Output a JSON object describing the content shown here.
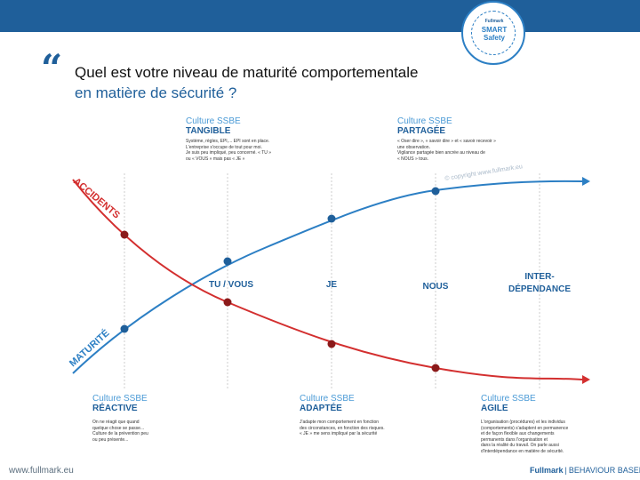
{
  "badge": {
    "top": "Fullmark",
    "line1": "SMART",
    "line2": "Safety"
  },
  "question": {
    "line1": "Quel est votre niveau  de maturité comportementale",
    "line2": "en matière de sécurité ?"
  },
  "curves": {
    "accidents_label": "ACCIDENTS",
    "maturity_label": "MATURITÉ",
    "accident_color": "#d32f2f",
    "maturity_color": "#2c7fc4",
    "accident_point_color": "#8b1a1a",
    "maturity_point_color": "#1f5f9a"
  },
  "stages": [
    {
      "title": "Culture SSBE",
      "subtitle": "TANGIBLE",
      "items": [
        "Système, règles, EPI,... EPI sont en place.",
        "L'entreprise s'occupe de tout pour moi.",
        "Je suis peu impliqué, peu concerné. « TU »",
        "ou « VOUS » mais pas « JE »"
      ]
    },
    {
      "title": "Culture SSBE",
      "subtitle": "PARTAGÉE",
      "items": [
        "« Oser dire », « savoir dire » et « savoir recevoir »",
        "une observation.",
        "Vigilance partagée bien ancrée au niveau de",
        "« NOUS » tous."
      ]
    },
    {
      "title": "Culture SSBE",
      "subtitle": "RÉACTIVE",
      "items": [
        "On ne réagit que quand",
        "quelque chose se passe...",
        "Culture de la prévention peu",
        "ou peu présente..."
      ]
    },
    {
      "title": "Culture SSBE",
      "subtitle": "ADAPTÉE",
      "items": [
        "J'adapte mon comportement en fonction",
        "des circonstances, en fonction des risques.",
        "« JE » me sens impliqué par la sécurité"
      ]
    },
    {
      "title": "Culture SSBE",
      "subtitle": "AGILE",
      "items": [
        "L'organisation (procédures) et les individus",
        "(comportements) s'adaptent en permanence",
        "et de façon flexible aux changements",
        "permanents dans l'organisation et",
        "dans la réalité du travail. On parle aussi",
        "d'interdépendance en matière de sécurité."
      ]
    }
  ],
  "levels": {
    "tu_vous": "TU / VOUS",
    "je": "JE",
    "nous": "NOUS",
    "inter_1": "INTER-",
    "inter_2": "DÉPENDANCE"
  },
  "watermark": "© copyright www.fullmark.eu",
  "footer": {
    "url": "www.fullmark.eu",
    "brand": "Fullmark",
    "separator": "|",
    "tagline": "BEHAVIOUR BASED"
  }
}
